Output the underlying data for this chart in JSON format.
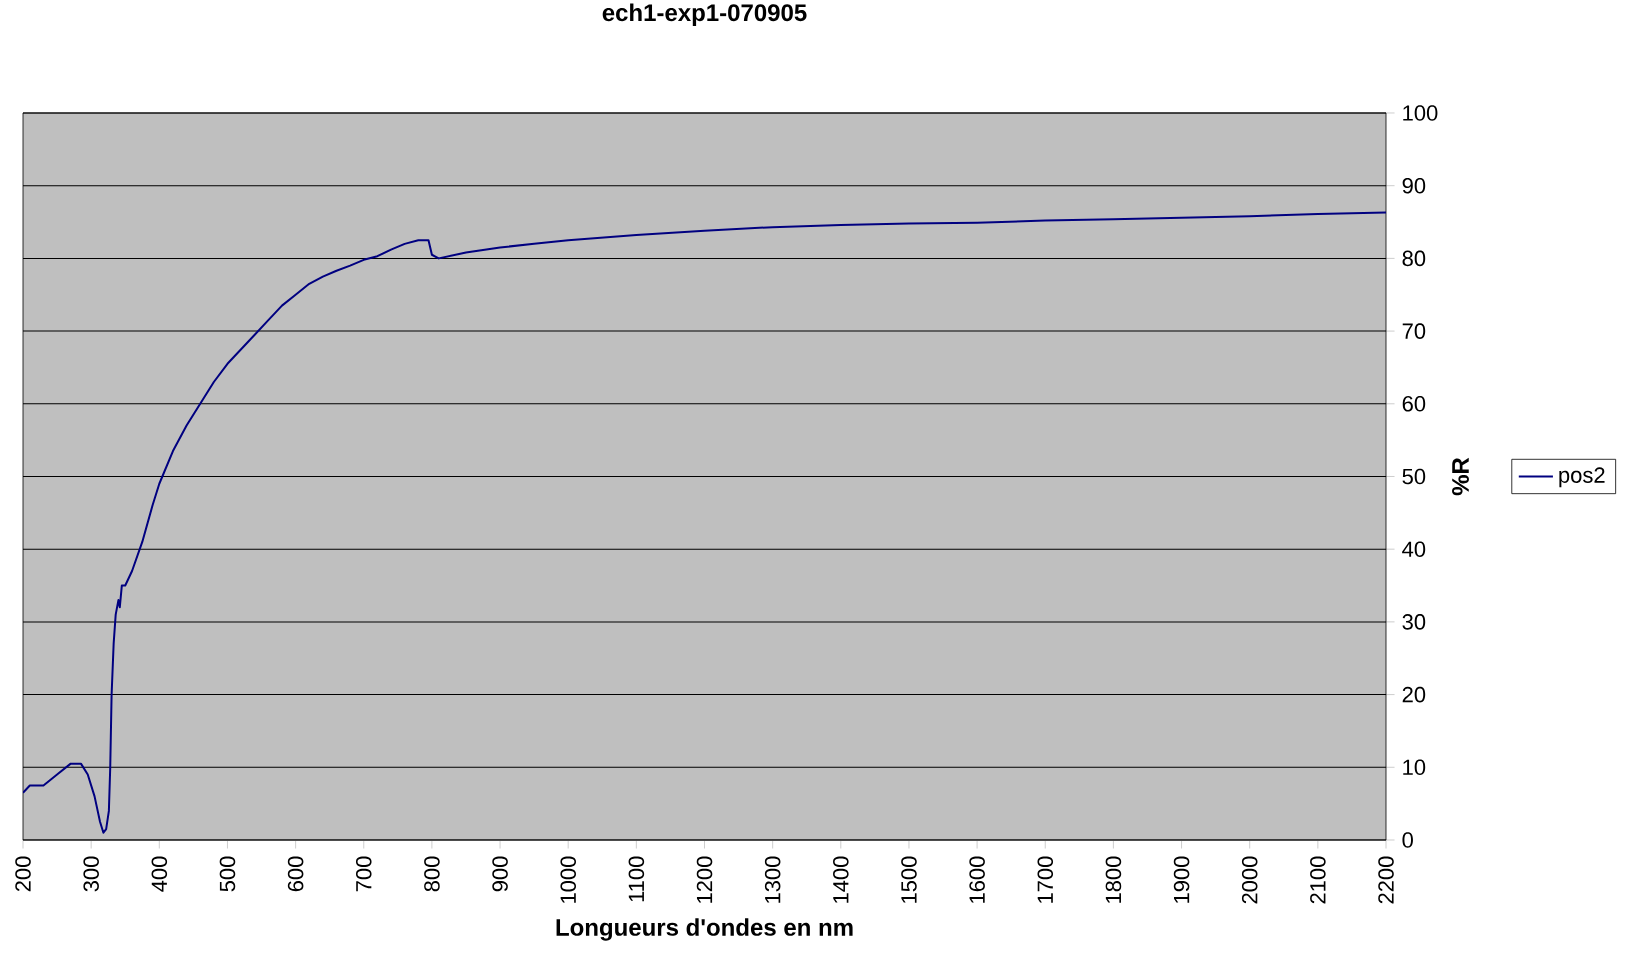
{
  "chart_data": {
    "type": "line",
    "title": "ech1-exp1-070905",
    "xlabel": "Longueurs d'ondes en nm",
    "ylabel": "%R",
    "xlim": [
      200,
      2200
    ],
    "xticks": [
      200,
      300,
      400,
      500,
      600,
      700,
      800,
      900,
      1000,
      1100,
      1200,
      1300,
      1400,
      1500,
      1600,
      1700,
      1800,
      1900,
      2000,
      2100,
      2200
    ],
    "ylim": [
      0,
      100
    ],
    "yticks": [
      0,
      10,
      20,
      30,
      40,
      50,
      60,
      70,
      80,
      90,
      100
    ],
    "grid": "y",
    "legend": "right",
    "marker": "none",
    "line_style": "solid",
    "x": [
      200,
      210,
      230,
      250,
      270,
      285,
      295,
      305,
      313,
      318,
      322,
      326,
      328,
      330,
      333,
      336,
      340,
      342,
      345,
      350,
      360,
      375,
      390,
      400,
      420,
      440,
      460,
      480,
      500,
      520,
      540,
      560,
      580,
      600,
      620,
      640,
      660,
      680,
      700,
      720,
      740,
      760,
      780,
      795,
      800,
      810,
      850,
      900,
      950,
      1000,
      1100,
      1200,
      1300,
      1400,
      1500,
      1600,
      1700,
      1800,
      1900,
      2000,
      2100,
      2200
    ],
    "series": [
      {
        "name": "pos2",
        "color": "#000080",
        "values": [
          6.5,
          7.5,
          7.5,
          9,
          10.5,
          10.5,
          9,
          6,
          2.5,
          1,
          1.5,
          4,
          10,
          20,
          27,
          31,
          33,
          32,
          35,
          35,
          37,
          41,
          46,
          49,
          53.5,
          57,
          60,
          63,
          65.5,
          67.5,
          69.5,
          71.5,
          73.5,
          75,
          76.5,
          77.5,
          78.3,
          79,
          79.8,
          80.3,
          81.2,
          82,
          82.5,
          82.5,
          80.5,
          80,
          80.8,
          81.5,
          82,
          82.5,
          83.2,
          83.8,
          84.3,
          84.6,
          84.8,
          84.9,
          85.2,
          85.4,
          85.6,
          85.8,
          86.1,
          86.3
        ]
      }
    ]
  }
}
